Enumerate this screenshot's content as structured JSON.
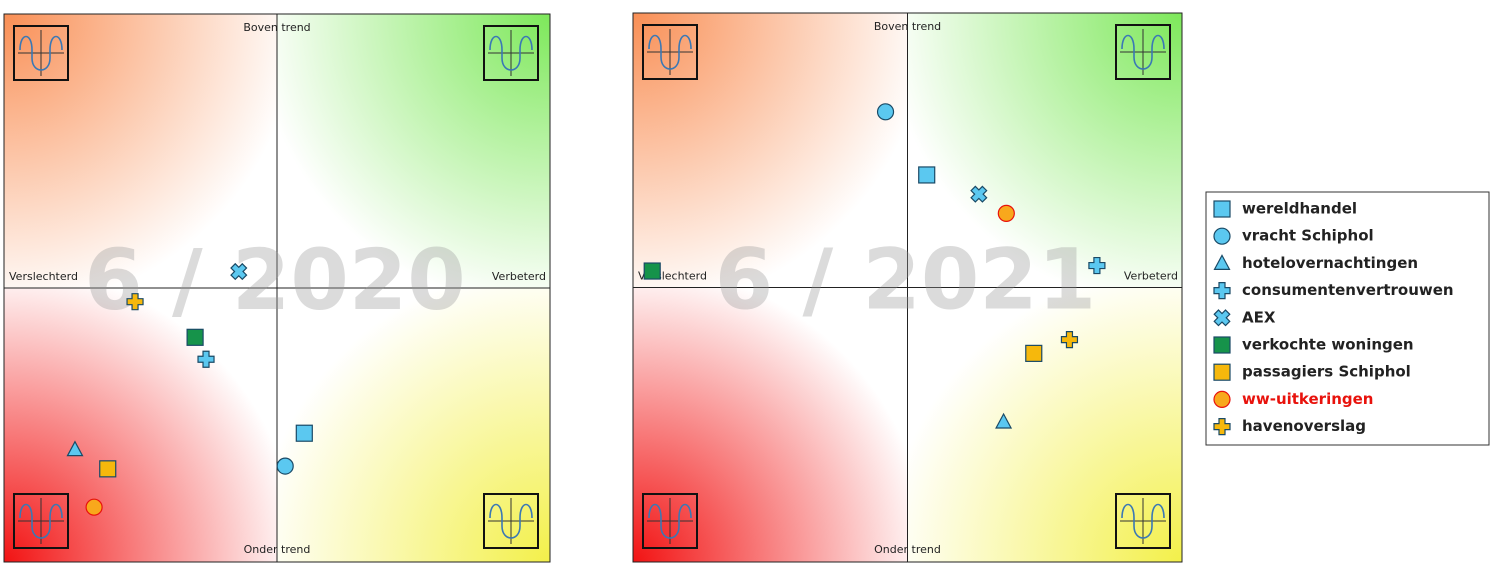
{
  "chart_data": [
    {
      "type": "scatter",
      "title": "6 / 2020",
      "top_label": "Boven trend",
      "bottom_label": "Onder trend",
      "left_label": "Verslechterd",
      "right_label": "Verbeterd",
      "xlim": [
        -1,
        1
      ],
      "ylim": [
        -1,
        1
      ],
      "points": [
        {
          "x": 0.1,
          "y": -0.53
        },
        {
          "x": 0.03,
          "y": -0.65
        },
        {
          "x": -0.74,
          "y": -0.59
        },
        {
          "x": -0.26,
          "y": -0.26
        },
        {
          "x": -0.14,
          "y": 0.06
        },
        {
          "x": -0.3,
          "y": -0.18
        },
        {
          "x": -0.62,
          "y": -0.66
        },
        {
          "x": -0.67,
          "y": -0.8
        },
        {
          "x": -0.52,
          "y": -0.05
        }
      ]
    },
    {
      "type": "scatter",
      "title": "6 / 2021",
      "top_label": "Boven trend",
      "bottom_label": "Onder trend",
      "left_label": "Verslechterd",
      "right_label": "Verbeterd",
      "xlim": [
        -1,
        1
      ],
      "ylim": [
        -1,
        1
      ],
      "points": [
        {
          "x": 0.07,
          "y": 0.41
        },
        {
          "x": -0.08,
          "y": 0.64
        },
        {
          "x": 0.35,
          "y": -0.49
        },
        {
          "x": 0.69,
          "y": 0.08
        },
        {
          "x": 0.26,
          "y": 0.34
        },
        {
          "x": -0.93,
          "y": 0.06
        },
        {
          "x": 0.46,
          "y": -0.24
        },
        {
          "x": 0.36,
          "y": 0.27
        },
        {
          "x": 0.59,
          "y": -0.19
        }
      ]
    }
  ],
  "legend": {
    "position": "right",
    "items": [
      {
        "name": "wereldhandel",
        "marker": "square",
        "color": "#5bc8f0",
        "text_color": "#222"
      },
      {
        "name": "vracht Schiphol",
        "marker": "circle",
        "color": "#5bc8f0",
        "text_color": "#222"
      },
      {
        "name": "hotelovernachtingen",
        "marker": "triangle",
        "color": "#5bc8f0",
        "text_color": "#222"
      },
      {
        "name": "consumentenvertrouwen",
        "marker": "plus",
        "color": "#5bc8f0",
        "text_color": "#222"
      },
      {
        "name": "AEX",
        "marker": "cross",
        "color": "#5bc8f0",
        "text_color": "#222"
      },
      {
        "name": "verkochte woningen",
        "marker": "square",
        "color": "#16934a",
        "text_color": "#222"
      },
      {
        "name": "passagiers Schiphol",
        "marker": "square",
        "color": "#f6b80c",
        "text_color": "#222"
      },
      {
        "name": "ww-uitkeringen",
        "marker": "circle",
        "color": "#f8a81c",
        "text_color": "#e8120c"
      },
      {
        "name": "havenoverslag",
        "marker": "plus",
        "color": "#f6b80c",
        "text_color": "#222"
      }
    ]
  }
}
